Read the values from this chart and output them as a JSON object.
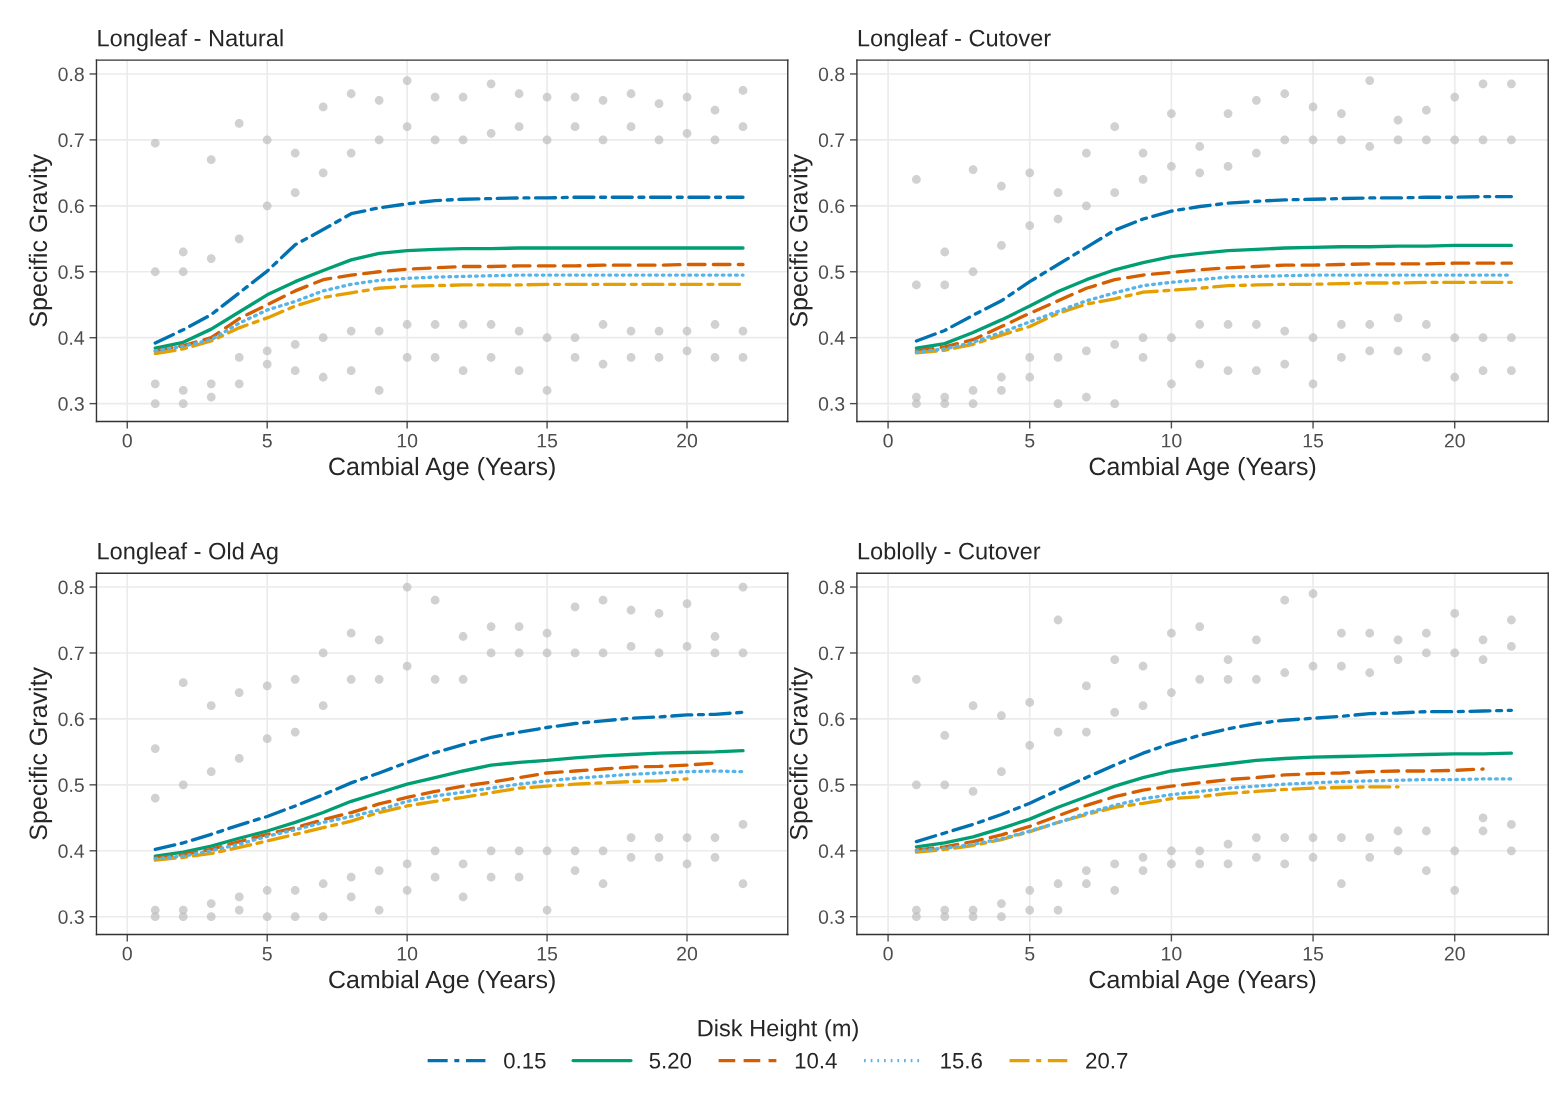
{
  "chart_data": [
    {
      "type": "line",
      "title": "Longleaf - Natural",
      "xlabel": "Cambial Age (Years)",
      "ylabel": "Specific Gravity",
      "xlim": [
        -1.1,
        23.6
      ],
      "ylim": [
        0.273,
        0.821
      ],
      "xticks": [
        0,
        5,
        10,
        15,
        20
      ],
      "yticks": [
        0.3,
        0.4,
        0.5,
        0.6,
        0.7,
        0.8
      ],
      "grid": true,
      "tick_labels": "xy",
      "legend": "bottom",
      "legend_title": "Disk Height (m)",
      "series": [
        {
          "type": "scatter",
          "marker": "circle",
          "color": "#bebebe",
          "x": [
            1,
            1,
            1,
            1,
            2,
            2,
            2,
            2,
            3,
            3,
            3,
            3,
            4,
            4,
            4,
            4,
            5,
            5,
            5,
            5,
            6,
            6,
            6,
            6,
            7,
            7,
            7,
            7,
            8,
            8,
            8,
            8,
            9,
            9,
            9,
            9,
            10,
            10,
            10,
            10,
            11,
            11,
            11,
            11,
            12,
            12,
            12,
            12,
            13,
            13,
            13,
            13,
            14,
            14,
            14,
            14,
            15,
            15,
            15,
            15,
            16,
            16,
            16,
            16,
            17,
            17,
            17,
            17,
            18,
            18,
            18,
            18,
            19,
            19,
            19,
            19,
            20,
            20,
            20,
            20,
            21,
            21,
            21,
            21,
            22,
            22,
            22,
            22
          ],
          "values": [
            0.3,
            0.33,
            0.5,
            0.695,
            0.3,
            0.32,
            0.5,
            0.53,
            0.31,
            0.33,
            0.52,
            0.67,
            0.33,
            0.37,
            0.55,
            0.725,
            0.36,
            0.38,
            0.6,
            0.7,
            0.35,
            0.39,
            0.62,
            0.68,
            0.34,
            0.4,
            0.65,
            0.75,
            0.35,
            0.41,
            0.68,
            0.77,
            0.32,
            0.41,
            0.7,
            0.76,
            0.37,
            0.42,
            0.72,
            0.79,
            0.37,
            0.42,
            0.7,
            0.765,
            0.35,
            0.42,
            0.7,
            0.765,
            0.37,
            0.42,
            0.71,
            0.785,
            0.35,
            0.41,
            0.72,
            0.77,
            0.32,
            0.4,
            0.7,
            0.765,
            0.37,
            0.4,
            0.72,
            0.765,
            0.36,
            0.42,
            0.7,
            0.76,
            0.37,
            0.41,
            0.72,
            0.77,
            0.37,
            0.41,
            0.7,
            0.755,
            0.38,
            0.41,
            0.71,
            0.765,
            0.37,
            0.42,
            0.7,
            0.745,
            0.37,
            0.41,
            0.72,
            0.775
          ]
        },
        {
          "name": "0.15",
          "color": "#0072b2",
          "line_style": "dashdot",
          "x": [
            1,
            2,
            3,
            4,
            5,
            6,
            7,
            8,
            9,
            10,
            11,
            12,
            13,
            14,
            15,
            16,
            17,
            18,
            19,
            20,
            21,
            22
          ],
          "values": [
            0.392,
            0.412,
            0.435,
            0.468,
            0.501,
            0.541,
            0.564,
            0.588,
            0.597,
            0.603,
            0.608,
            0.61,
            0.611,
            0.612,
            0.612,
            0.613,
            0.613,
            0.613,
            0.613,
            0.613,
            0.613,
            0.613
          ]
        },
        {
          "name": "5.20",
          "color": "#009e73",
          "line_style": "solid",
          "x": [
            1,
            2,
            3,
            4,
            5,
            6,
            7,
            8,
            9,
            10,
            11,
            12,
            13,
            14,
            15,
            16,
            17,
            18,
            19,
            20,
            21,
            22
          ],
          "values": [
            0.384,
            0.393,
            0.413,
            0.439,
            0.465,
            0.485,
            0.502,
            0.518,
            0.528,
            0.532,
            0.534,
            0.535,
            0.535,
            0.536,
            0.536,
            0.536,
            0.536,
            0.536,
            0.536,
            0.536,
            0.536,
            0.536
          ]
        },
        {
          "name": "10.4",
          "color": "#d55e00",
          "line_style": "dashed",
          "x": [
            1,
            2,
            3,
            4,
            5,
            6,
            7,
            8,
            9,
            10,
            11,
            12,
            13,
            14,
            15,
            16,
            17,
            18,
            19,
            20,
            21,
            22
          ],
          "values": [
            0.38,
            0.388,
            0.4,
            0.429,
            0.45,
            0.471,
            0.488,
            0.495,
            0.5,
            0.504,
            0.506,
            0.508,
            0.508,
            0.509,
            0.509,
            0.509,
            0.51,
            0.51,
            0.51,
            0.511,
            0.511,
            0.511
          ]
        },
        {
          "name": "15.6",
          "color": "#56b4e9",
          "line_style": "dotted",
          "x": [
            1,
            2,
            3,
            4,
            5,
            6,
            7,
            8,
            9,
            10,
            11,
            12,
            13,
            14,
            15,
            16,
            17,
            18,
            19,
            20,
            21,
            22
          ],
          "values": [
            0.38,
            0.387,
            0.397,
            0.422,
            0.442,
            0.455,
            0.471,
            0.481,
            0.487,
            0.49,
            0.492,
            0.493,
            0.494,
            0.495,
            0.495,
            0.495,
            0.495,
            0.495,
            0.495,
            0.495,
            0.495,
            0.495
          ]
        },
        {
          "name": "20.7",
          "color": "#e69f00",
          "line_style": "dashdot",
          "x": [
            1,
            2,
            3,
            4,
            5,
            6,
            7,
            8,
            9,
            10,
            11,
            12,
            13,
            14,
            15,
            16,
            17,
            18,
            19,
            20,
            21,
            22
          ],
          "values": [
            0.376,
            0.383,
            0.395,
            0.415,
            0.43,
            0.448,
            0.461,
            0.468,
            0.475,
            0.478,
            0.479,
            0.48,
            0.48,
            0.48,
            0.481,
            0.481,
            0.481,
            0.481,
            0.481,
            0.481,
            0.481,
            0.481
          ]
        }
      ]
    },
    {
      "type": "line",
      "title": "Longleaf - Cutover",
      "xlabel": "Cambial Age (Years)",
      "ylabel": "Specific Gravity",
      "xlim": [
        -1.1,
        23.3
      ],
      "ylim": [
        0.273,
        0.821
      ],
      "xticks": [
        0,
        5,
        10,
        15,
        20
      ],
      "yticks": [
        0.3,
        0.4,
        0.5,
        0.6,
        0.7,
        0.8
      ],
      "grid": true,
      "tick_labels": "xy",
      "series": [
        {
          "type": "scatter",
          "marker": "circle",
          "color": "#bebebe",
          "x": [
            1,
            1,
            1,
            1,
            2,
            2,
            2,
            2,
            3,
            3,
            3,
            3,
            4,
            4,
            4,
            4,
            5,
            5,
            5,
            5,
            6,
            6,
            6,
            6,
            7,
            7,
            7,
            7,
            8,
            8,
            8,
            8,
            9,
            9,
            9,
            9,
            10,
            10,
            10,
            10,
            11,
            11,
            11,
            11,
            12,
            12,
            12,
            12,
            13,
            13,
            13,
            13,
            14,
            14,
            14,
            14,
            15,
            15,
            15,
            15,
            16,
            16,
            16,
            16,
            17,
            17,
            17,
            17,
            18,
            18,
            18,
            18,
            19,
            19,
            19,
            19,
            20,
            20,
            20,
            20,
            21,
            21,
            21,
            21,
            22,
            22,
            22,
            22
          ],
          "values": [
            0.3,
            0.31,
            0.48,
            0.64,
            0.3,
            0.31,
            0.48,
            0.53,
            0.3,
            0.32,
            0.5,
            0.655,
            0.32,
            0.34,
            0.54,
            0.63,
            0.34,
            0.37,
            0.57,
            0.65,
            0.3,
            0.37,
            0.58,
            0.62,
            0.31,
            0.38,
            0.6,
            0.68,
            0.3,
            0.39,
            0.62,
            0.72,
            0.37,
            0.4,
            0.64,
            0.68,
            0.33,
            0.4,
            0.66,
            0.74,
            0.36,
            0.42,
            0.65,
            0.69,
            0.35,
            0.42,
            0.66,
            0.74,
            0.35,
            0.42,
            0.68,
            0.76,
            0.36,
            0.41,
            0.7,
            0.77,
            0.33,
            0.4,
            0.7,
            0.75,
            0.37,
            0.42,
            0.7,
            0.74,
            0.38,
            0.42,
            0.69,
            0.79,
            0.38,
            0.43,
            0.7,
            0.73,
            0.37,
            0.42,
            0.7,
            0.745,
            0.34,
            0.4,
            0.7,
            0.765,
            0.35,
            0.4,
            0.7,
            0.785,
            0.35,
            0.4,
            0.7,
            0.785
          ]
        },
        {
          "name": "0.15",
          "color": "#0072b2",
          "line_style": "dashdot",
          "x": [
            1,
            2,
            3,
            4,
            5,
            6,
            7,
            8,
            9,
            10,
            11,
            12,
            13,
            14,
            15,
            16,
            17,
            18,
            19,
            20,
            21,
            22
          ],
          "values": [
            0.395,
            0.411,
            0.434,
            0.456,
            0.485,
            0.511,
            0.537,
            0.563,
            0.58,
            0.592,
            0.599,
            0.604,
            0.607,
            0.609,
            0.61,
            0.611,
            0.612,
            0.612,
            0.613,
            0.613,
            0.614,
            0.614
          ]
        },
        {
          "name": "5.20",
          "color": "#009e73",
          "line_style": "solid",
          "x": [
            1,
            2,
            3,
            4,
            5,
            6,
            7,
            8,
            9,
            10,
            11,
            12,
            13,
            14,
            15,
            16,
            17,
            18,
            19,
            20,
            21,
            22
          ],
          "values": [
            0.384,
            0.391,
            0.408,
            0.427,
            0.448,
            0.47,
            0.488,
            0.503,
            0.514,
            0.523,
            0.528,
            0.532,
            0.534,
            0.536,
            0.537,
            0.538,
            0.538,
            0.539,
            0.539,
            0.54,
            0.54,
            0.54
          ]
        },
        {
          "name": "10.4",
          "color": "#d55e00",
          "line_style": "dashed",
          "x": [
            1,
            2,
            3,
            4,
            5,
            6,
            7,
            8,
            9,
            10,
            11,
            12,
            13,
            14,
            15,
            16,
            17,
            18,
            19,
            20,
            21,
            22
          ],
          "values": [
            0.38,
            0.386,
            0.397,
            0.417,
            0.437,
            0.456,
            0.475,
            0.488,
            0.495,
            0.499,
            0.503,
            0.506,
            0.508,
            0.51,
            0.51,
            0.511,
            0.512,
            0.512,
            0.512,
            0.513,
            0.513,
            0.513
          ]
        },
        {
          "name": "15.6",
          "color": "#56b4e9",
          "line_style": "dotted",
          "x": [
            1,
            2,
            3,
            4,
            5,
            6,
            7,
            8,
            9,
            10,
            11,
            12,
            13,
            14,
            15,
            16,
            17,
            18,
            19,
            20,
            21,
            22
          ],
          "values": [
            0.378,
            0.383,
            0.393,
            0.408,
            0.424,
            0.44,
            0.456,
            0.468,
            0.479,
            0.484,
            0.488,
            0.492,
            0.493,
            0.494,
            0.495,
            0.495,
            0.495,
            0.495,
            0.495,
            0.495,
            0.495,
            0.495
          ]
        },
        {
          "name": "20.7",
          "color": "#e69f00",
          "line_style": "dashdot",
          "x": [
            1,
            2,
            3,
            4,
            5,
            6,
            7,
            8,
            9,
            10,
            11,
            12,
            13,
            14,
            15,
            16,
            17,
            18,
            19,
            20,
            21,
            22
          ],
          "values": [
            0.377,
            0.381,
            0.39,
            0.404,
            0.417,
            0.437,
            0.451,
            0.459,
            0.469,
            0.472,
            0.475,
            0.479,
            0.48,
            0.481,
            0.481,
            0.482,
            0.483,
            0.483,
            0.484,
            0.484,
            0.484,
            0.484
          ]
        }
      ]
    },
    {
      "type": "line",
      "title": "Longleaf - Old Ag",
      "xlabel": "Cambial Age (Years)",
      "ylabel": "Specific Gravity",
      "xlim": [
        -1.1,
        23.6
      ],
      "ylim": [
        0.273,
        0.821
      ],
      "xticks": [
        0,
        5,
        10,
        15,
        20
      ],
      "yticks": [
        0.3,
        0.4,
        0.5,
        0.6,
        0.7,
        0.8
      ],
      "grid": true,
      "tick_labels": "xy",
      "series": [
        {
          "type": "scatter",
          "marker": "circle",
          "color": "#bebebe",
          "x": [
            1,
            1,
            1,
            1,
            2,
            2,
            2,
            2,
            3,
            3,
            3,
            3,
            4,
            4,
            4,
            4,
            5,
            5,
            5,
            5,
            6,
            6,
            6,
            6,
            7,
            7,
            7,
            7,
            8,
            8,
            8,
            8,
            9,
            9,
            9,
            9,
            10,
            10,
            10,
            10,
            11,
            11,
            11,
            11,
            12,
            12,
            12,
            12,
            13,
            13,
            13,
            13,
            14,
            14,
            14,
            14,
            15,
            15,
            15,
            15,
            16,
            16,
            16,
            16,
            17,
            17,
            17,
            17,
            18,
            18,
            18,
            18,
            19,
            19,
            19,
            19,
            20,
            20,
            20,
            20,
            21,
            21,
            21,
            21,
            22,
            22,
            22,
            22
          ],
          "values": [
            0.3,
            0.31,
            0.48,
            0.555,
            0.3,
            0.31,
            0.5,
            0.655,
            0.3,
            0.32,
            0.52,
            0.62,
            0.31,
            0.33,
            0.54,
            0.64,
            0.3,
            0.34,
            0.57,
            0.65,
            0.3,
            0.34,
            0.58,
            0.66,
            0.3,
            0.35,
            0.62,
            0.7,
            0.33,
            0.36,
            0.66,
            0.73,
            0.31,
            0.37,
            0.66,
            0.72,
            0.34,
            0.38,
            0.68,
            0.8,
            0.36,
            0.4,
            0.66,
            0.78,
            0.33,
            0.38,
            0.66,
            0.725,
            0.36,
            0.4,
            0.7,
            0.74,
            0.36,
            0.4,
            0.7,
            0.74,
            0.31,
            0.4,
            0.7,
            0.73,
            0.37,
            0.4,
            0.7,
            0.77,
            0.35,
            0.4,
            0.7,
            0.78,
            0.39,
            0.42,
            0.71,
            0.765,
            0.39,
            0.42,
            0.7,
            0.76,
            0.38,
            0.42,
            0.71,
            0.775,
            0.39,
            0.42,
            0.7,
            0.725,
            0.35,
            0.44,
            0.7,
            0.8
          ]
        },
        {
          "name": "0.15",
          "color": "#0072b2",
          "line_style": "dashdot",
          "x": [
            1,
            2,
            3,
            4,
            5,
            6,
            7,
            8,
            9,
            10,
            11,
            12,
            13,
            14,
            15,
            16,
            17,
            18,
            19,
            20,
            21,
            22
          ],
          "values": [
            0.402,
            0.412,
            0.425,
            0.439,
            0.452,
            0.468,
            0.485,
            0.503,
            0.518,
            0.534,
            0.549,
            0.561,
            0.572,
            0.58,
            0.587,
            0.593,
            0.597,
            0.601,
            0.603,
            0.606,
            0.607,
            0.61
          ]
        },
        {
          "name": "5.20",
          "color": "#009e73",
          "line_style": "solid",
          "x": [
            1,
            2,
            3,
            4,
            5,
            6,
            7,
            8,
            9,
            10,
            11,
            12,
            13,
            14,
            15,
            16,
            17,
            18,
            19,
            20,
            21,
            22
          ],
          "values": [
            0.392,
            0.398,
            0.407,
            0.419,
            0.43,
            0.443,
            0.458,
            0.475,
            0.488,
            0.501,
            0.511,
            0.521,
            0.53,
            0.534,
            0.537,
            0.541,
            0.544,
            0.546,
            0.548,
            0.549,
            0.55,
            0.552
          ]
        },
        {
          "name": "10.4",
          "color": "#d55e00",
          "line_style": "dashed",
          "x": [
            1,
            2,
            3,
            4,
            5,
            6,
            7,
            8,
            9,
            10,
            11,
            12,
            13,
            14,
            15,
            16,
            17,
            18,
            19,
            20,
            21
          ],
          "values": [
            0.389,
            0.394,
            0.402,
            0.414,
            0.425,
            0.435,
            0.447,
            0.458,
            0.471,
            0.481,
            0.49,
            0.498,
            0.504,
            0.511,
            0.518,
            0.521,
            0.524,
            0.527,
            0.528,
            0.53,
            0.533
          ]
        },
        {
          "name": "15.6",
          "color": "#56b4e9",
          "line_style": "dotted",
          "x": [
            1,
            2,
            3,
            4,
            5,
            6,
            7,
            8,
            9,
            10,
            11,
            12,
            13,
            14,
            15,
            16,
            17,
            18,
            19,
            20,
            21,
            22
          ],
          "values": [
            0.388,
            0.392,
            0.4,
            0.41,
            0.422,
            0.432,
            0.443,
            0.452,
            0.462,
            0.475,
            0.483,
            0.489,
            0.495,
            0.501,
            0.506,
            0.51,
            0.513,
            0.516,
            0.518,
            0.52,
            0.521,
            0.52
          ]
        },
        {
          "name": "20.7",
          "color": "#e69f00",
          "line_style": "dashdot",
          "x": [
            1,
            2,
            3,
            4,
            5,
            6,
            7,
            8,
            9,
            10,
            11,
            12,
            13,
            14,
            15,
            16,
            17,
            18,
            19,
            20
          ],
          "values": [
            0.386,
            0.39,
            0.396,
            0.405,
            0.415,
            0.425,
            0.435,
            0.445,
            0.458,
            0.468,
            0.475,
            0.481,
            0.488,
            0.495,
            0.498,
            0.501,
            0.503,
            0.505,
            0.506,
            0.509
          ]
        }
      ]
    },
    {
      "type": "line",
      "title": "Loblolly - Cutover",
      "xlabel": "Cambial Age (Years)",
      "ylabel": "Specific Gravity",
      "xlim": [
        -1.1,
        23.3
      ],
      "ylim": [
        0.273,
        0.821
      ],
      "xticks": [
        0,
        5,
        10,
        15,
        20
      ],
      "yticks": [
        0.3,
        0.4,
        0.5,
        0.6,
        0.7,
        0.8
      ],
      "grid": true,
      "tick_labels": "xy",
      "series": [
        {
          "type": "scatter",
          "marker": "circle",
          "color": "#bebebe",
          "x": [
            1,
            1,
            1,
            1,
            2,
            2,
            2,
            2,
            3,
            3,
            3,
            3,
            4,
            4,
            4,
            4,
            5,
            5,
            5,
            5,
            6,
            6,
            6,
            6,
            7,
            7,
            7,
            7,
            8,
            8,
            8,
            8,
            9,
            9,
            9,
            9,
            10,
            10,
            10,
            10,
            11,
            11,
            11,
            11,
            12,
            12,
            12,
            12,
            13,
            13,
            13,
            13,
            14,
            14,
            14,
            14,
            15,
            15,
            15,
            15,
            16,
            16,
            16,
            16,
            17,
            17,
            17,
            17,
            18,
            18,
            18,
            18,
            19,
            19,
            19,
            19,
            20,
            20,
            20,
            20,
            21,
            21,
            21,
            21,
            22,
            22,
            22,
            22
          ],
          "values": [
            0.3,
            0.31,
            0.5,
            0.66,
            0.3,
            0.31,
            0.5,
            0.575,
            0.3,
            0.31,
            0.49,
            0.62,
            0.3,
            0.32,
            0.52,
            0.605,
            0.31,
            0.34,
            0.56,
            0.625,
            0.31,
            0.35,
            0.58,
            0.75,
            0.35,
            0.37,
            0.58,
            0.65,
            0.34,
            0.38,
            0.61,
            0.69,
            0.37,
            0.39,
            0.62,
            0.68,
            0.38,
            0.4,
            0.64,
            0.73,
            0.38,
            0.4,
            0.66,
            0.74,
            0.38,
            0.41,
            0.66,
            0.69,
            0.39,
            0.42,
            0.66,
            0.72,
            0.38,
            0.42,
            0.67,
            0.78,
            0.39,
            0.42,
            0.68,
            0.79,
            0.35,
            0.42,
            0.68,
            0.73,
            0.39,
            0.42,
            0.67,
            0.73,
            0.4,
            0.43,
            0.69,
            0.72,
            0.37,
            0.43,
            0.7,
            0.73,
            0.34,
            0.4,
            0.7,
            0.76,
            0.43,
            0.45,
            0.69,
            0.72,
            0.4,
            0.44,
            0.71,
            0.75
          ]
        },
        {
          "name": "0.15",
          "color": "#0072b2",
          "line_style": "dashdot",
          "x": [
            1,
            2,
            3,
            4,
            5,
            6,
            7,
            8,
            9,
            10,
            11,
            12,
            13,
            14,
            15,
            16,
            17,
            18,
            19,
            20,
            21,
            22
          ],
          "values": [
            0.414,
            0.427,
            0.44,
            0.455,
            0.472,
            0.492,
            0.511,
            0.53,
            0.548,
            0.563,
            0.575,
            0.585,
            0.593,
            0.598,
            0.601,
            0.604,
            0.608,
            0.609,
            0.611,
            0.611,
            0.612,
            0.613
          ]
        },
        {
          "name": "5.20",
          "color": "#009e73",
          "line_style": "solid",
          "x": [
            1,
            2,
            3,
            4,
            5,
            6,
            7,
            8,
            9,
            10,
            11,
            12,
            13,
            14,
            15,
            16,
            17,
            18,
            19,
            20,
            21,
            22
          ],
          "values": [
            0.406,
            0.412,
            0.421,
            0.434,
            0.448,
            0.466,
            0.482,
            0.498,
            0.511,
            0.521,
            0.527,
            0.532,
            0.537,
            0.54,
            0.542,
            0.543,
            0.544,
            0.545,
            0.546,
            0.547,
            0.547,
            0.548
          ]
        },
        {
          "name": "10.4",
          "color": "#d55e00",
          "line_style": "dashed",
          "x": [
            1,
            2,
            3,
            4,
            5,
            6,
            7,
            8,
            9,
            10,
            11,
            12,
            13,
            14,
            15,
            16,
            17,
            18,
            19,
            20,
            21
          ],
          "values": [
            0.401,
            0.406,
            0.414,
            0.424,
            0.437,
            0.453,
            0.469,
            0.482,
            0.492,
            0.498,
            0.503,
            0.508,
            0.511,
            0.515,
            0.517,
            0.518,
            0.52,
            0.521,
            0.521,
            0.522,
            0.524
          ]
        },
        {
          "name": "15.6",
          "color": "#56b4e9",
          "line_style": "dotted",
          "x": [
            1,
            2,
            3,
            4,
            5,
            6,
            7,
            8,
            9,
            10,
            11,
            12,
            13,
            14,
            15,
            16,
            17,
            18,
            19,
            20,
            21,
            22
          ],
          "values": [
            0.4,
            0.404,
            0.41,
            0.418,
            0.43,
            0.443,
            0.457,
            0.469,
            0.479,
            0.485,
            0.49,
            0.495,
            0.498,
            0.501,
            0.503,
            0.505,
            0.506,
            0.507,
            0.508,
            0.508,
            0.509,
            0.509
          ]
        },
        {
          "name": "20.7",
          "color": "#e69f00",
          "line_style": "dashdot",
          "x": [
            1,
            2,
            3,
            4,
            5,
            6,
            7,
            8,
            9,
            10,
            11,
            12,
            13,
            14,
            15,
            16,
            17,
            18
          ],
          "values": [
            0.398,
            0.402,
            0.408,
            0.417,
            0.429,
            0.443,
            0.455,
            0.466,
            0.472,
            0.479,
            0.482,
            0.487,
            0.49,
            0.493,
            0.495,
            0.496,
            0.497,
            0.497
          ]
        }
      ]
    }
  ]
}
